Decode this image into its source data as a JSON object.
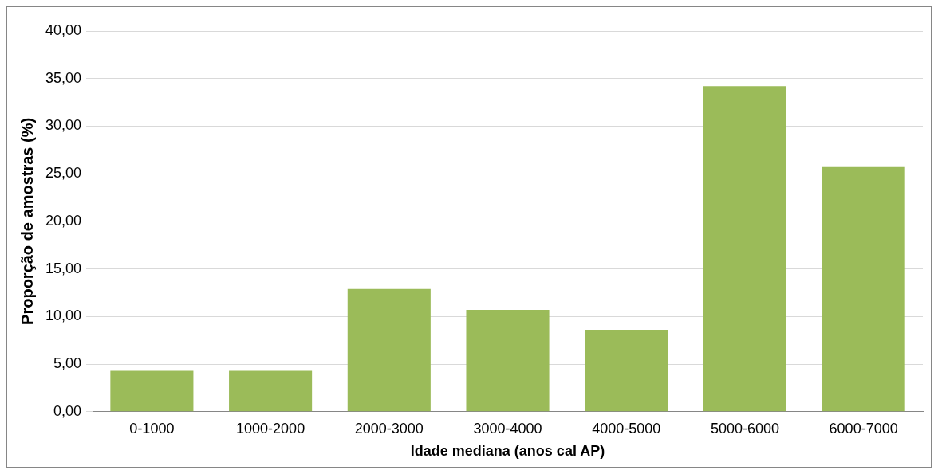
{
  "chart_data": {
    "type": "bar",
    "xlabel": "Idade mediana (anos cal AP)",
    "ylabel": "Proporção de amostras (%)",
    "categories": [
      "0-1000",
      "1000-2000",
      "2000-3000",
      "3000-4000",
      "4000-5000",
      "5000-6000",
      "6000-7000"
    ],
    "values": [
      4.3,
      4.3,
      12.9,
      10.7,
      8.6,
      34.2,
      25.7
    ],
    "color": "#9bbb59",
    "ylim": [
      0,
      40
    ],
    "yticks": [
      {
        "value": 0,
        "label": "0,00"
      },
      {
        "value": 5,
        "label": "5,00"
      },
      {
        "value": 10,
        "label": "10,00"
      },
      {
        "value": 15,
        "label": "15,00"
      },
      {
        "value": 20,
        "label": "20,00"
      },
      {
        "value": 25,
        "label": "25,00"
      },
      {
        "value": 30,
        "label": "30,00"
      },
      {
        "value": 35,
        "label": "35,00"
      },
      {
        "value": 40,
        "label": "40,00"
      }
    ],
    "grid": "y",
    "legend": false
  }
}
